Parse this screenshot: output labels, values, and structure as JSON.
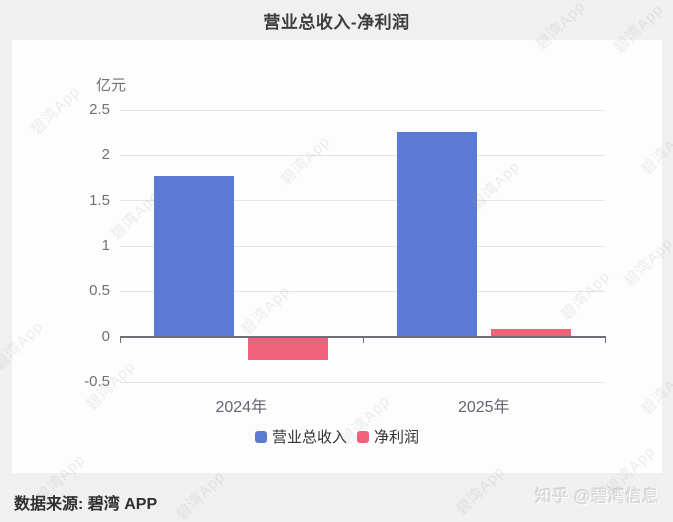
{
  "chart_data": {
    "type": "bar",
    "title": "营业总收入-净利润",
    "unit_label": "亿元",
    "categories": [
      "2024年",
      "2025年"
    ],
    "series": [
      {
        "name": "营业总收入",
        "color": "#5a7ad4",
        "values": [
          1.77,
          2.26
        ]
      },
      {
        "name": "净利润",
        "color": "#f0627a",
        "values": [
          -0.25,
          0.08
        ]
      }
    ],
    "ylim": [
      -0.5,
      2.5
    ],
    "yticks": [
      2.5,
      2,
      1.5,
      1,
      0.5,
      0,
      -0.5
    ],
    "grid": true,
    "legend_position": "bottom",
    "xlabel": "",
    "ylabel": "亿元"
  },
  "footer": {
    "source": "数据来源: 碧湾 APP",
    "credit": "知乎 @碧湾信息"
  },
  "watermark": {
    "text": "碧湾App"
  },
  "colors": {
    "background": "#f0f0f0",
    "card": "#fdfdfd",
    "axis_line": "#6e7079",
    "grid_line": "#e4e6ec",
    "tick_label": "#6e7079",
    "revenue_bar": "#5a7ad4",
    "profit_bar": "#f0627a"
  }
}
